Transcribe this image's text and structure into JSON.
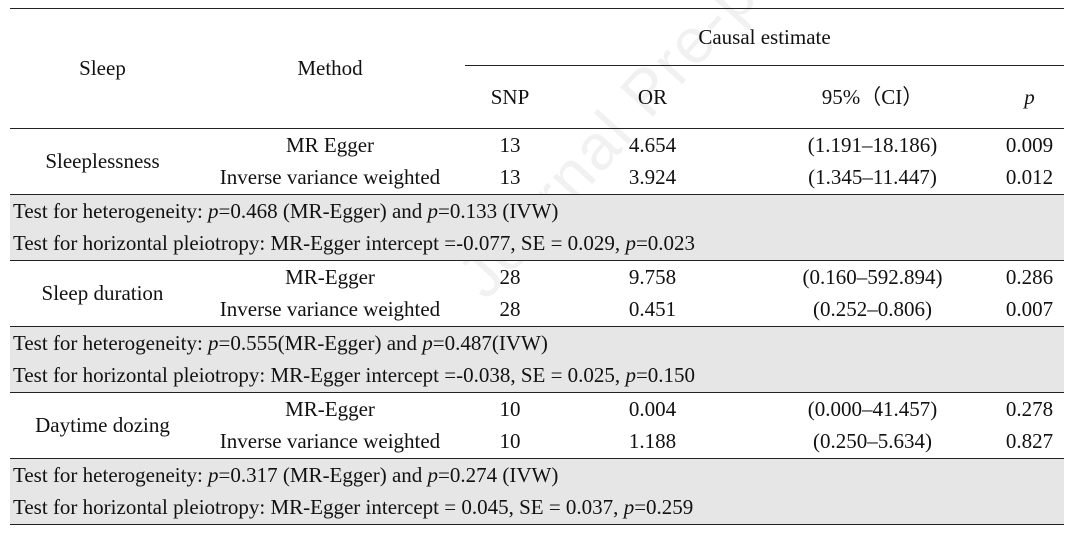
{
  "watermark": "Journal Pre-proof",
  "header": {
    "sleep": "Sleep",
    "method": "Method",
    "causal_estimate": "Causal estimate",
    "snp": "SNP",
    "or": "OR",
    "ci": "95%（CI）",
    "p": "p"
  },
  "groups": [
    {
      "name": "Sleeplessness",
      "rows": [
        {
          "method": "MR Egger",
          "snp": "13",
          "or": "4.654",
          "ci": "(1.191–18.186)",
          "p": "0.009"
        },
        {
          "method": "Inverse variance weighted",
          "snp": "13",
          "or": "3.924",
          "ci": "(1.345–11.447)",
          "p": "0.012"
        }
      ],
      "het": {
        "pre": "Test for heterogeneity: ",
        "p1": "p",
        "v1": "=0.468 (MR-Egger) and ",
        "p2": "p",
        "v2": "=0.133 (IVW)"
      },
      "pleio": {
        "pre": "Test for horizontal pleiotropy: MR-Egger intercept =-0.077, SE = 0.029, ",
        "p": "p",
        "v": "=0.023"
      }
    },
    {
      "name": "Sleep duration",
      "rows": [
        {
          "method": "MR-Egger",
          "snp": "28",
          "or": "9.758",
          "ci": "(0.160–592.894)",
          "p": "0.286"
        },
        {
          "method": "Inverse variance weighted",
          "snp": "28",
          "or": "0.451",
          "ci": "(0.252–0.806)",
          "p": "0.007"
        }
      ],
      "het": {
        "pre": "Test for heterogeneity: ",
        "p1": "p",
        "v1": "=0.555(MR-Egger) and ",
        "p2": "p",
        "v2": "=0.487(IVW)"
      },
      "pleio": {
        "pre": "Test for horizontal pleiotropy: MR-Egger intercept =-0.038, SE = 0.025, ",
        "p": "p",
        "v": "=0.150"
      }
    },
    {
      "name": "Daytime dozing",
      "rows": [
        {
          "method": "MR-Egger",
          "snp": "10",
          "or": "0.004",
          "ci": "(0.000–41.457)",
          "p": "0.278"
        },
        {
          "method": "Inverse variance weighted",
          "snp": "10",
          "or": "1.188",
          "ci": "(0.250–5.634)",
          "p": "0.827"
        }
      ],
      "het": {
        "pre": "Test for heterogeneity: ",
        "p1": "p",
        "v1": "=0.317 (MR-Egger) and ",
        "p2": "p",
        "v2": "=0.274 (IVW)"
      },
      "pleio": {
        "pre": "Test for horizontal pleiotropy: MR-Egger intercept = 0.045, SE = 0.037, ",
        "p": "p",
        "v": "=0.259"
      }
    }
  ]
}
